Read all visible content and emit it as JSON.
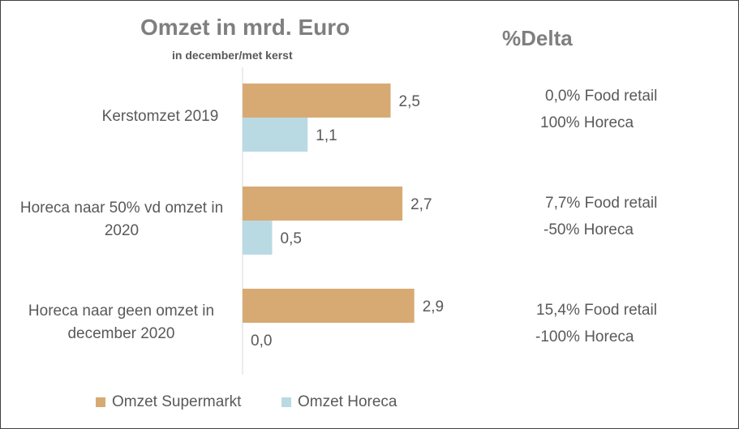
{
  "chart_data": {
    "type": "bar",
    "orientation": "horizontal",
    "title": "Omzet in mrd. Euro",
    "subtitle": "in december/met kerst",
    "categories": [
      "Kerstomzet 2019",
      "Horeca naar 50% vd omzet in 2020",
      "Horeca naar geen omzet in december 2020"
    ],
    "series": [
      {
        "name": "Omzet Supermarkt",
        "color": "#d7aa74",
        "values": [
          2.5,
          2.7,
          2.9
        ],
        "labels": [
          "2,5",
          "2,7",
          "2,9"
        ]
      },
      {
        "name": "Omzet Horeca",
        "color": "#b9dae3",
        "values": [
          1.1,
          0.5,
          0.0
        ],
        "labels": [
          "1,1",
          "0,5",
          "0,0"
        ]
      }
    ],
    "xlim": [
      0,
      5
    ],
    "grid": false,
    "legend": "bottom-left"
  },
  "delta": {
    "title": "%Delta",
    "rows": [
      {
        "food": "0,0% Food retail",
        "horeca": "100% Horeca"
      },
      {
        "food": "7,7% Food retail",
        "horeca": "-50% Horeca"
      },
      {
        "food": "15,4% Food retail",
        "horeca": "-100% Horeca"
      }
    ]
  },
  "colors": {
    "axis": "#d9d9d9",
    "text": "#595959",
    "title": "#7f7f7f"
  }
}
